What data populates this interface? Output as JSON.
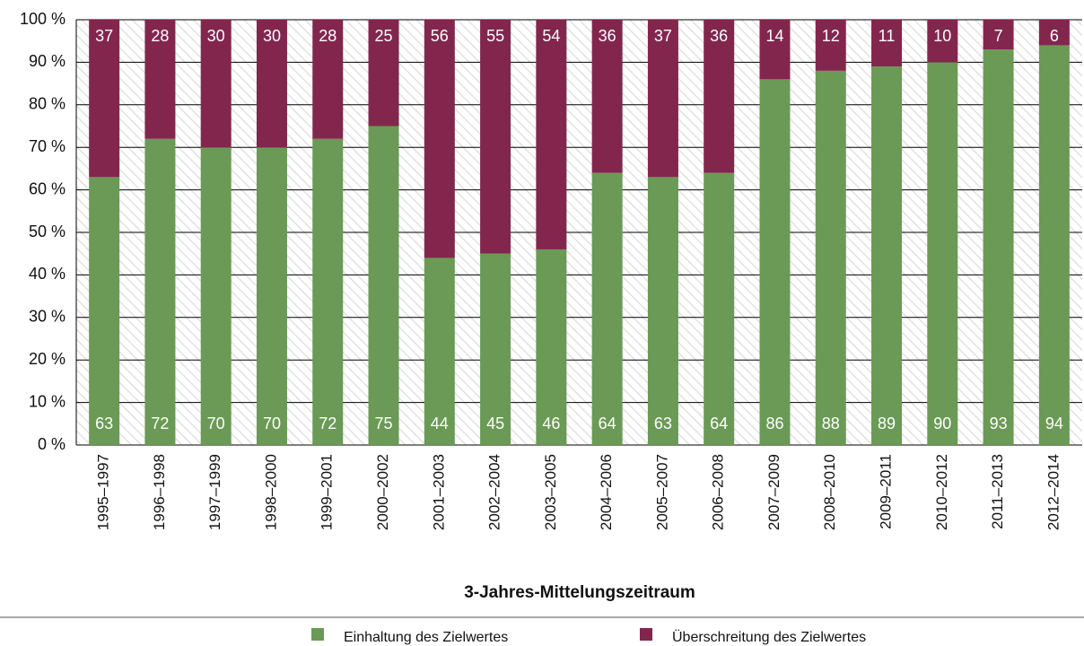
{
  "chart_data": {
    "type": "stacked_bar",
    "xlabel": "3-Jahres-Mittelungszeitraum",
    "categories": [
      "1995–1997",
      "1996–1998",
      "1997–1999",
      "1998–2000",
      "1999–2001",
      "2000–2002",
      "2001–2003",
      "2002–2004",
      "2003–2005",
      "2004–2006",
      "2005–2007",
      "2006–2008",
      "2007–2009",
      "2008–2010",
      "2009–2011",
      "2010–2012",
      "2011–2013",
      "2012–2014"
    ],
    "series": [
      {
        "name": "Einhaltung des Zielwertes",
        "color": "#6a9a55",
        "values": [
          63,
          72,
          70,
          70,
          72,
          75,
          44,
          45,
          46,
          64,
          63,
          64,
          86,
          88,
          89,
          90,
          93,
          94
        ]
      },
      {
        "name": "Überschreitung des Zielwertes",
        "color": "#83264d",
        "values": [
          37,
          28,
          30,
          30,
          28,
          25,
          56,
          55,
          54,
          36,
          37,
          36,
          14,
          12,
          11,
          10,
          7,
          6
        ]
      }
    ],
    "ylim": [
      0,
      100
    ],
    "yticks": [
      {
        "value": 0,
        "label": "0 %"
      },
      {
        "value": 10,
        "label": "10 %"
      },
      {
        "value": 20,
        "label": "20 %"
      },
      {
        "value": 30,
        "label": "30 %"
      },
      {
        "value": 40,
        "label": "40 %"
      },
      {
        "value": 50,
        "label": "50 %"
      },
      {
        "value": 60,
        "label": "60 %"
      },
      {
        "value": 70,
        "label": "70 %"
      },
      {
        "value": 80,
        "label": "80 %"
      },
      {
        "value": 90,
        "label": "90 %"
      },
      {
        "value": 100,
        "label": "100 %"
      }
    ],
    "grid": true,
    "legend": "bottom"
  }
}
